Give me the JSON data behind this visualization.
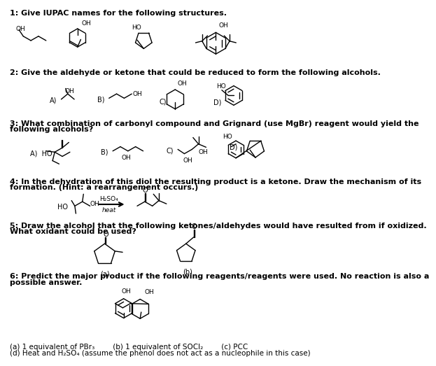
{
  "bg_color": "#ffffff",
  "q1": "1: Give IUPAC names for the following structures.",
  "q2": "2: Give the aldehyde or ketone that could be reduced to form the following alcohols.",
  "q3_1": "3: What combination of carbonyl compound and Grignard (use MgBr) reagent would yield the",
  "q3_2": "following alcohols?",
  "q4_1": "4: In the dehydration of this diol the resulting product is a ketone. Draw the mechanism of its",
  "q4_2": "formation. (Hint: a rearrangement occurs.)",
  "q5_1": "5: Draw the alcohol that the following ketones/aldehydes would have resulted from if oxidized.",
  "q5_2": "What oxidant could be used?",
  "q6_1": "6: Predict the major product if the following reagents/reagents were used. No reaction is also a",
  "q6_2": "possible answer.",
  "footer1": "(a) 1 equivalent of PBr₃        (b) 1 equivalent of SOCl₂        (c) PCC",
  "footer2": "(d) Heat and H₂SO₄ (assume the phenol does not act as a nucleophile in this case)"
}
